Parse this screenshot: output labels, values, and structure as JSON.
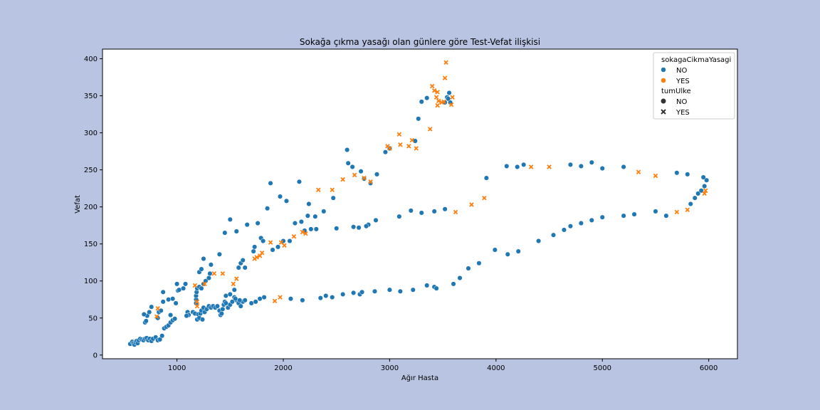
{
  "chart_data": {
    "type": "scatter",
    "title": "Sokağa çıkma yasağı olan günlere göre Test-Vefat ilişkisi",
    "xlabel": "Ağır Hasta",
    "ylabel": "Vefat",
    "xlim": [
      300,
      6270
    ],
    "ylim": [
      -5,
      413
    ],
    "xticks": [
      1000,
      2000,
      3000,
      4000,
      5000,
      6000
    ],
    "yticks": [
      0,
      50,
      100,
      150,
      200,
      250,
      300,
      350,
      400
    ],
    "grid": false,
    "legend": {
      "placement": "top-right",
      "hue_title": "sokagaCikmaYasagi",
      "hue_entries": [
        {
          "label": "NO",
          "color": "#1f77b4"
        },
        {
          "label": "YES",
          "color": "#ff7f0e"
        }
      ],
      "style_title": "tumUlke",
      "style_entries": [
        {
          "label": "NO",
          "marker": "circle"
        },
        {
          "label": "YES",
          "marker": "x"
        }
      ]
    },
    "series": [
      {
        "name": "NO",
        "color": "#1f77b4",
        "marker": "circle",
        "points": [
          [
            560,
            15
          ],
          [
            580,
            18
          ],
          [
            590,
            16
          ],
          [
            600,
            14
          ],
          [
            610,
            17
          ],
          [
            620,
            19
          ],
          [
            630,
            16
          ],
          [
            640,
            20
          ],
          [
            655,
            22
          ],
          [
            670,
            21
          ],
          [
            685,
            20
          ],
          [
            700,
            22
          ],
          [
            715,
            23
          ],
          [
            730,
            20
          ],
          [
            745,
            22
          ],
          [
            760,
            19
          ],
          [
            775,
            22
          ],
          [
            800,
            24
          ],
          [
            820,
            20
          ],
          [
            840,
            21
          ],
          [
            860,
            26
          ],
          [
            880,
            36
          ],
          [
            900,
            38
          ],
          [
            920,
            40
          ],
          [
            940,
            44
          ],
          [
            960,
            47
          ],
          [
            980,
            49
          ],
          [
            700,
            44
          ],
          [
            710,
            46
          ],
          [
            720,
            53
          ],
          [
            740,
            58
          ],
          [
            760,
            65
          ],
          [
            690,
            55
          ],
          [
            820,
            50
          ],
          [
            830,
            58
          ],
          [
            850,
            60
          ],
          [
            870,
            72
          ],
          [
            920,
            75
          ],
          [
            960,
            76
          ],
          [
            990,
            70
          ],
          [
            1000,
            96
          ],
          [
            1010,
            87
          ],
          [
            1020,
            88
          ],
          [
            1060,
            90
          ],
          [
            1080,
            96
          ],
          [
            1100,
            58
          ],
          [
            1110,
            54
          ],
          [
            1090,
            53
          ],
          [
            940,
            54
          ],
          [
            870,
            85
          ],
          [
            1150,
            58
          ],
          [
            1170,
            56
          ],
          [
            1190,
            48
          ],
          [
            1200,
            55
          ],
          [
            1210,
            50
          ],
          [
            1220,
            56
          ],
          [
            1230,
            60
          ],
          [
            1240,
            48
          ],
          [
            1250,
            64
          ],
          [
            1260,
            58
          ],
          [
            1280,
            62
          ],
          [
            1300,
            66
          ],
          [
            1320,
            64
          ],
          [
            1340,
            66
          ],
          [
            1360,
            64
          ],
          [
            1380,
            66
          ],
          [
            1400,
            60
          ],
          [
            1410,
            54
          ],
          [
            1420,
            56
          ],
          [
            1430,
            62
          ],
          [
            1440,
            68
          ],
          [
            1450,
            72
          ],
          [
            1460,
            70
          ],
          [
            1480,
            64
          ],
          [
            1500,
            68
          ],
          [
            1520,
            72
          ],
          [
            1540,
            78
          ],
          [
            1560,
            74
          ],
          [
            1580,
            70
          ],
          [
            1600,
            66
          ],
          [
            1620,
            72
          ],
          [
            1640,
            74
          ],
          [
            1700,
            70
          ],
          [
            1740,
            72
          ],
          [
            1780,
            76
          ],
          [
            1820,
            78
          ],
          [
            1180,
            70
          ],
          [
            1180,
            75
          ],
          [
            1180,
            80
          ],
          [
            1185,
            85
          ],
          [
            1190,
            90
          ],
          [
            1210,
            92
          ],
          [
            1230,
            90
          ],
          [
            1250,
            96
          ],
          [
            1270,
            100
          ],
          [
            1300,
            104
          ],
          [
            1310,
            110
          ],
          [
            1320,
            122
          ],
          [
            1210,
            112
          ],
          [
            1230,
            116
          ],
          [
            1250,
            130
          ],
          [
            1400,
            136
          ],
          [
            1450,
            165
          ],
          [
            1500,
            183
          ],
          [
            1560,
            167
          ],
          [
            1580,
            118
          ],
          [
            1600,
            124
          ],
          [
            1620,
            128
          ],
          [
            1640,
            118
          ],
          [
            1660,
            176
          ],
          [
            1720,
            140
          ],
          [
            1730,
            146
          ],
          [
            1760,
            178
          ],
          [
            1790,
            158
          ],
          [
            1810,
            154
          ],
          [
            1850,
            198
          ],
          [
            1880,
            232
          ],
          [
            1900,
            142
          ],
          [
            1950,
            146
          ],
          [
            1970,
            214
          ],
          [
            2000,
            154
          ],
          [
            2030,
            208
          ],
          [
            2060,
            154
          ],
          [
            2110,
            178
          ],
          [
            2150,
            234
          ],
          [
            2170,
            180
          ],
          [
            2200,
            168
          ],
          [
            2230,
            188
          ],
          [
            2240,
            204
          ],
          [
            2260,
            170
          ],
          [
            2310,
            170
          ],
          [
            2380,
            194
          ],
          [
            2470,
            212
          ],
          [
            2300,
            187
          ],
          [
            2600,
            277
          ],
          [
            2610,
            259
          ],
          [
            2650,
            254
          ],
          [
            2730,
            248
          ],
          [
            2760,
            238
          ],
          [
            2800,
            176
          ],
          [
            2820,
            232
          ],
          [
            2880,
            244
          ],
          [
            1460,
            80
          ],
          [
            1500,
            82
          ],
          [
            1540,
            88
          ],
          [
            1550,
            76
          ],
          [
            1590,
            74
          ],
          [
            2070,
            76
          ],
          [
            2180,
            74
          ],
          [
            2350,
            77
          ],
          [
            2400,
            80
          ],
          [
            2460,
            78
          ],
          [
            2560,
            82
          ],
          [
            2660,
            84
          ],
          [
            2720,
            82
          ],
          [
            2740,
            85
          ],
          [
            2860,
            86
          ],
          [
            3000,
            88
          ],
          [
            3100,
            86
          ],
          [
            3220,
            88
          ],
          [
            3350,
            94
          ],
          [
            3420,
            92
          ],
          [
            3440,
            90
          ],
          [
            3600,
            96
          ],
          [
            3660,
            104
          ],
          [
            3740,
            117
          ],
          [
            3840,
            124
          ],
          [
            3990,
            142
          ],
          [
            4110,
            136
          ],
          [
            4210,
            140
          ],
          [
            4400,
            154
          ],
          [
            4540,
            162
          ],
          [
            4640,
            169
          ],
          [
            4700,
            174
          ],
          [
            4800,
            178
          ],
          [
            4900,
            182
          ],
          [
            5000,
            186
          ],
          [
            5200,
            188
          ],
          [
            5300,
            190
          ],
          [
            5500,
            194
          ],
          [
            5600,
            188
          ],
          [
            5830,
            204
          ],
          [
            5870,
            212
          ],
          [
            5900,
            218
          ],
          [
            5930,
            222
          ],
          [
            5960,
            228
          ],
          [
            5980,
            236
          ],
          [
            5950,
            240
          ],
          [
            2500,
            171
          ],
          [
            2660,
            173
          ],
          [
            2710,
            172
          ],
          [
            2780,
            174
          ],
          [
            2870,
            182
          ],
          [
            3090,
            187
          ],
          [
            3200,
            195
          ],
          [
            3300,
            192
          ],
          [
            3420,
            194
          ],
          [
            3520,
            197
          ],
          [
            3910,
            239
          ],
          [
            4100,
            255
          ],
          [
            4200,
            254
          ],
          [
            4260,
            257
          ],
          [
            4700,
            257
          ],
          [
            4800,
            255
          ],
          [
            4900,
            260
          ],
          [
            5000,
            252
          ],
          [
            5200,
            254
          ],
          [
            5700,
            246
          ],
          [
            5800,
            244
          ],
          [
            2960,
            274
          ],
          [
            3000,
            279
          ],
          [
            3240,
            289
          ],
          [
            3270,
            319
          ],
          [
            3300,
            342
          ],
          [
            3350,
            347
          ],
          [
            3540,
            348
          ],
          [
            3560,
            354
          ],
          [
            3570,
            341
          ],
          [
            3520,
            341
          ],
          [
            3550,
            346
          ]
        ]
      },
      {
        "name": "YES",
        "color": "#ff7f0e",
        "marker": "x",
        "points": [
          [
            810,
            52
          ],
          [
            820,
            63
          ],
          [
            1170,
            94
          ],
          [
            1190,
            72
          ],
          [
            1190,
            66
          ],
          [
            1260,
            96
          ],
          [
            1350,
            110
          ],
          [
            1430,
            110
          ],
          [
            1530,
            96
          ],
          [
            1560,
            103
          ],
          [
            1730,
            130
          ],
          [
            1750,
            132
          ],
          [
            1780,
            134
          ],
          [
            1800,
            138
          ],
          [
            1880,
            152
          ],
          [
            1920,
            73
          ],
          [
            1970,
            78
          ],
          [
            1980,
            152
          ],
          [
            2010,
            148
          ],
          [
            2100,
            160
          ],
          [
            2180,
            166
          ],
          [
            2210,
            164
          ],
          [
            2330,
            223
          ],
          [
            2460,
            223
          ],
          [
            2560,
            237
          ],
          [
            2670,
            243
          ],
          [
            2760,
            239
          ],
          [
            2820,
            234
          ],
          [
            2980,
            282
          ],
          [
            3000,
            279
          ],
          [
            3100,
            284
          ],
          [
            3090,
            298
          ],
          [
            3180,
            282
          ],
          [
            3210,
            290
          ],
          [
            3250,
            279
          ],
          [
            3380,
            305
          ],
          [
            3400,
            363
          ],
          [
            3420,
            357
          ],
          [
            3450,
            337
          ],
          [
            3460,
            343
          ],
          [
            3440,
            348
          ],
          [
            3450,
            355
          ],
          [
            3490,
            341
          ],
          [
            3510,
            342
          ],
          [
            3520,
            374
          ],
          [
            3530,
            395
          ],
          [
            3580,
            338
          ],
          [
            3590,
            348
          ],
          [
            3620,
            193
          ],
          [
            3770,
            203
          ],
          [
            3890,
            212
          ],
          [
            4330,
            254
          ],
          [
            4500,
            254
          ],
          [
            5340,
            247
          ],
          [
            5500,
            242
          ],
          [
            5700,
            193
          ],
          [
            5800,
            196
          ],
          [
            5970,
            222
          ],
          [
            5960,
            218
          ]
        ]
      }
    ]
  }
}
